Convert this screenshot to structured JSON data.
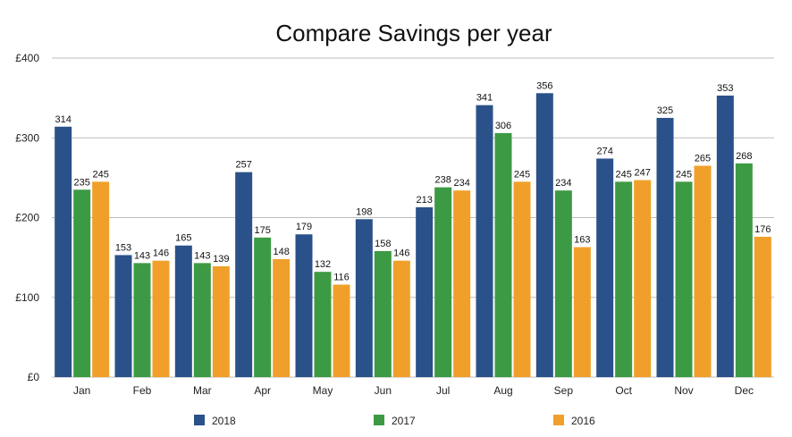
{
  "chart_data": {
    "type": "bar",
    "title": "Compare Savings per year",
    "xlabel": "",
    "ylabel": "",
    "categories": [
      "Jan",
      "Feb",
      "Mar",
      "Apr",
      "May",
      "Jun",
      "Jul",
      "Aug",
      "Sep",
      "Oct",
      "Nov",
      "Dec"
    ],
    "series": [
      {
        "name": "2018",
        "color": "#2a5189",
        "values": [
          314,
          153,
          165,
          257,
          179,
          198,
          213,
          341,
          356,
          274,
          325,
          353
        ]
      },
      {
        "name": "2017",
        "color": "#3d9a44",
        "values": [
          235,
          143,
          143,
          175,
          132,
          158,
          238,
          306,
          234,
          245,
          245,
          268
        ]
      },
      {
        "name": "2016",
        "color": "#f0a02a",
        "values": [
          245,
          146,
          139,
          148,
          116,
          146,
          234,
          245,
          163,
          247,
          265,
          176
        ]
      }
    ],
    "ylim": [
      0,
      400
    ],
    "yticks": [
      0,
      100,
      200,
      300,
      400
    ],
    "ytick_labels": [
      "£0",
      "£100",
      "£200",
      "£300",
      "£400"
    ],
    "grid": true,
    "legend_position": "bottom"
  }
}
